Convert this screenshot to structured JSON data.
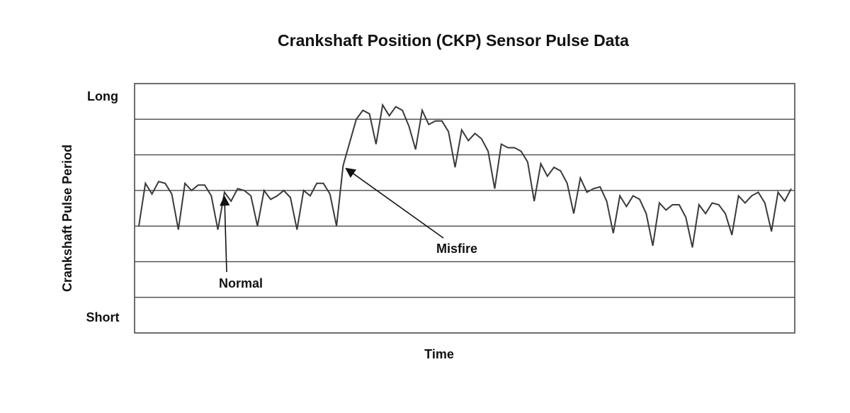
{
  "chart_data": {
    "type": "line",
    "title": "Crankshaft Position (CKP) Sensor Pulse Data",
    "xlabel": "Time",
    "ylabel": "Crankshaft Pulse Period",
    "y_tick_labels": {
      "top": "Long",
      "bottom": "Short"
    },
    "ylim": [
      0,
      7
    ],
    "xlim": [
      0,
      100
    ],
    "grid": true,
    "colors": {
      "line": "#3a3a3a",
      "grid": "#4a4a4a",
      "text": "#111111"
    },
    "annotations": [
      {
        "text": "Normal",
        "target_index": 13
      },
      {
        "text": "Misfire",
        "target_index": 31
      }
    ],
    "series": [
      {
        "values": [
          3.0,
          4.2,
          3.9,
          4.25,
          4.2,
          3.9,
          2.9,
          4.2,
          4.0,
          4.15,
          4.15,
          3.85,
          2.9,
          3.95,
          3.7,
          4.05,
          4.0,
          3.85,
          3.0,
          4.0,
          3.75,
          3.85,
          4.0,
          3.8,
          2.9,
          4.0,
          3.85,
          4.2,
          4.2,
          3.9,
          3.0,
          4.7,
          5.35,
          6.0,
          6.25,
          6.15,
          5.3,
          6.4,
          6.1,
          6.35,
          6.25,
          5.8,
          5.15,
          6.25,
          5.85,
          5.95,
          5.95,
          5.65,
          4.65,
          5.7,
          5.4,
          5.6,
          5.45,
          5.1,
          4.05,
          5.3,
          5.2,
          5.2,
          5.1,
          4.8,
          3.7,
          4.75,
          4.4,
          4.65,
          4.55,
          4.2,
          3.35,
          4.35,
          3.95,
          4.05,
          4.1,
          3.7,
          2.8,
          3.85,
          3.55,
          3.85,
          3.75,
          3.35,
          2.45,
          3.65,
          3.45,
          3.6,
          3.6,
          3.25,
          2.4,
          3.6,
          3.35,
          3.65,
          3.6,
          3.35,
          2.75,
          3.85,
          3.65,
          3.85,
          3.95,
          3.65,
          2.85,
          3.95,
          3.7,
          4.05
        ]
      }
    ]
  }
}
